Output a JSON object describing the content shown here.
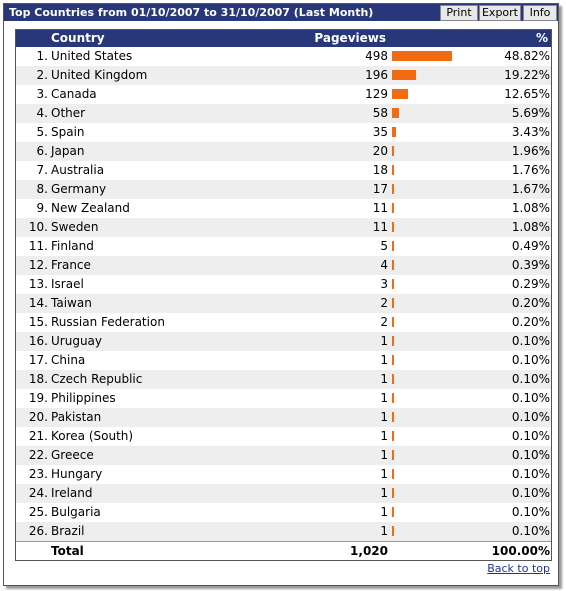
{
  "header": {
    "title": "Top Countries from 01/10/2007 to 31/10/2007 (Last Month)",
    "buttons": [
      "Print",
      "Export",
      "Info"
    ]
  },
  "table": {
    "columns": [
      "Country",
      "Pageviews",
      "%"
    ],
    "rows": [
      {
        "rank": "1.",
        "country": "United States",
        "pageviews": 498,
        "percent": "48.82%"
      },
      {
        "rank": "2.",
        "country": "United Kingdom",
        "pageviews": 196,
        "percent": "19.22%"
      },
      {
        "rank": "3.",
        "country": "Canada",
        "pageviews": 129,
        "percent": "12.65%"
      },
      {
        "rank": "4.",
        "country": "Other",
        "pageviews": 58,
        "percent": "5.69%"
      },
      {
        "rank": "5.",
        "country": "Spain",
        "pageviews": 35,
        "percent": "3.43%"
      },
      {
        "rank": "6.",
        "country": "Japan",
        "pageviews": 20,
        "percent": "1.96%"
      },
      {
        "rank": "7.",
        "country": "Australia",
        "pageviews": 18,
        "percent": "1.76%"
      },
      {
        "rank": "8.",
        "country": "Germany",
        "pageviews": 17,
        "percent": "1.67%"
      },
      {
        "rank": "9.",
        "country": "New Zealand",
        "pageviews": 11,
        "percent": "1.08%"
      },
      {
        "rank": "10.",
        "country": "Sweden",
        "pageviews": 11,
        "percent": "1.08%"
      },
      {
        "rank": "11.",
        "country": "Finland",
        "pageviews": 5,
        "percent": "0.49%"
      },
      {
        "rank": "12.",
        "country": "France",
        "pageviews": 4,
        "percent": "0.39%"
      },
      {
        "rank": "13.",
        "country": "Israel",
        "pageviews": 3,
        "percent": "0.29%"
      },
      {
        "rank": "14.",
        "country": "Taiwan",
        "pageviews": 2,
        "percent": "0.20%"
      },
      {
        "rank": "15.",
        "country": "Russian Federation",
        "pageviews": 2,
        "percent": "0.20%"
      },
      {
        "rank": "16.",
        "country": "Uruguay",
        "pageviews": 1,
        "percent": "0.10%"
      },
      {
        "rank": "17.",
        "country": "China",
        "pageviews": 1,
        "percent": "0.10%"
      },
      {
        "rank": "18.",
        "country": "Czech Republic",
        "pageviews": 1,
        "percent": "0.10%"
      },
      {
        "rank": "19.",
        "country": "Philippines",
        "pageviews": 1,
        "percent": "0.10%"
      },
      {
        "rank": "20.",
        "country": "Pakistan",
        "pageviews": 1,
        "percent": "0.10%"
      },
      {
        "rank": "21.",
        "country": "Korea (South)",
        "pageviews": 1,
        "percent": "0.10%"
      },
      {
        "rank": "22.",
        "country": "Greece",
        "pageviews": 1,
        "percent": "0.10%"
      },
      {
        "rank": "23.",
        "country": "Hungary",
        "pageviews": 1,
        "percent": "0.10%"
      },
      {
        "rank": "24.",
        "country": "Ireland",
        "pageviews": 1,
        "percent": "0.10%"
      },
      {
        "rank": "25.",
        "country": "Bulgaria",
        "pageviews": 1,
        "percent": "0.10%"
      },
      {
        "rank": "26.",
        "country": "Brazil",
        "pageviews": 1,
        "percent": "0.10%"
      }
    ],
    "total": {
      "label": "Total",
      "pageviews": "1,020",
      "percent": "100.00%"
    }
  },
  "footer": {
    "link": "Back to top"
  }
}
